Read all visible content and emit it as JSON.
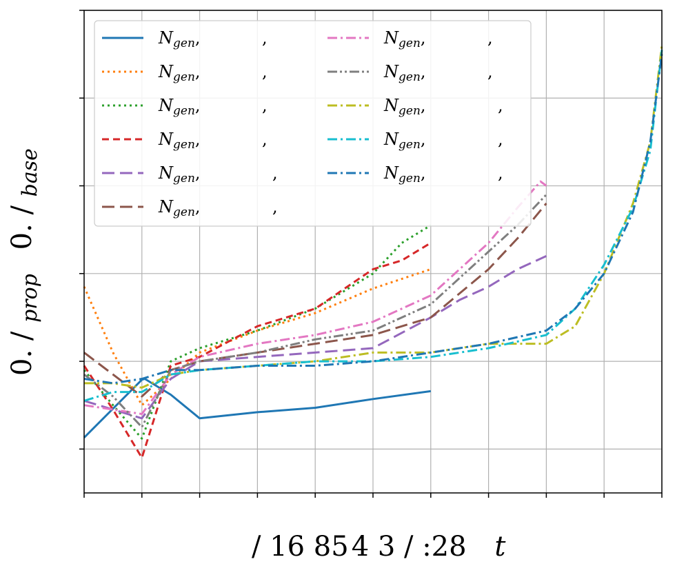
{
  "chart_data": {
    "type": "line",
    "xlabel": "/ 16  85 4  3 / :28",
    "xlabel_var": "t",
    "ylabel": "0. /",
    "ylabel_sub": "prop",
    "ylabel2": "0. /",
    "ylabel2_sub": "base",
    "xlim": [
      0,
      10
    ],
    "ylim": [
      0,
      5.5
    ],
    "xticks": [
      0,
      1,
      2,
      3,
      4,
      5,
      6,
      7,
      8,
      9,
      10
    ],
    "yticks": [
      0.5,
      1.5,
      2.5,
      3.5,
      4.5,
      5.5
    ],
    "grid": true,
    "legend_position": "top-left",
    "legend_columns": 2,
    "legend_label_main": "N",
    "legend_label_sub": "gen",
    "legend_label_suffix": ",",
    "series": [
      {
        "color": "#1f77b4",
        "dash": "solid",
        "x": [
          0,
          1,
          1.05,
          1.5,
          2,
          3,
          4,
          5,
          6
        ],
        "y": [
          0.63,
          1.29,
          1.3,
          1.12,
          0.85,
          0.92,
          0.97,
          1.07,
          1.16
        ]
      },
      {
        "color": "#ff7f0e",
        "dash": "dotted",
        "x": [
          0,
          0.5,
          1,
          1.5,
          2,
          3,
          4,
          5,
          6
        ],
        "y": [
          2.35,
          1.6,
          1.0,
          1.3,
          1.6,
          1.85,
          2.05,
          2.33,
          2.55
        ]
      },
      {
        "color": "#2ca02c",
        "dash": "dotted",
        "x": [
          0,
          0.5,
          1,
          1.5,
          2,
          3,
          4,
          5,
          5.5,
          6
        ],
        "y": [
          1.4,
          1.0,
          0.62,
          1.5,
          1.65,
          1.85,
          2.1,
          2.5,
          2.85,
          3.05
        ]
      },
      {
        "color": "#d62728",
        "dash": "dashed",
        "x": [
          0,
          0.5,
          1,
          1.5,
          2,
          3,
          4,
          5,
          5.5,
          6
        ],
        "y": [
          1.45,
          0.95,
          0.4,
          1.45,
          1.55,
          1.9,
          2.1,
          2.55,
          2.65,
          2.85
        ]
      },
      {
        "color": "#9467bd",
        "dash": "longdash",
        "x": [
          0,
          0.5,
          1,
          1.5,
          2,
          3,
          4,
          5,
          6,
          6.5,
          7,
          7.5,
          8
        ],
        "y": [
          1.05,
          0.95,
          0.85,
          1.3,
          1.5,
          1.55,
          1.6,
          1.65,
          2.0,
          2.2,
          2.35,
          2.55,
          2.7
        ]
      },
      {
        "color": "#8c564b",
        "dash": "longdash",
        "x": [
          0,
          0.5,
          1,
          1.5,
          2,
          3,
          4,
          5,
          6,
          7,
          7.5,
          8
        ],
        "y": [
          1.6,
          1.35,
          1.1,
          1.4,
          1.5,
          1.6,
          1.7,
          1.8,
          2.0,
          2.55,
          2.9,
          3.3
        ]
      },
      {
        "color": "#e377c2",
        "dash": "dashdot",
        "x": [
          0,
          0.5,
          1,
          1.5,
          2,
          3,
          4,
          5,
          6,
          7,
          7.5,
          7.9,
          8
        ],
        "y": [
          1.0,
          0.95,
          0.9,
          1.35,
          1.55,
          1.7,
          1.8,
          1.95,
          2.25,
          2.85,
          3.25,
          3.55,
          3.5
        ]
      },
      {
        "color": "#7f7f7f",
        "dash": "dashdotdot",
        "x": [
          0,
          0.5,
          1,
          1.5,
          2,
          3,
          4,
          5,
          6,
          7,
          7.5,
          8
        ],
        "y": [
          1.35,
          1.1,
          0.75,
          1.4,
          1.5,
          1.6,
          1.75,
          1.85,
          2.15,
          2.75,
          3.05,
          3.4
        ]
      },
      {
        "color": "#bcbd22",
        "dash": "dashdot",
        "x": [
          0,
          0.5,
          1,
          1.5,
          2,
          3,
          4,
          5,
          6,
          7,
          8,
          8.5,
          9,
          9.5,
          9.8,
          10
        ],
        "y": [
          1.25,
          1.25,
          1.2,
          1.35,
          1.4,
          1.45,
          1.5,
          1.6,
          1.6,
          1.7,
          1.7,
          1.9,
          2.5,
          3.3,
          4.0,
          5.1
        ]
      },
      {
        "color": "#17becf",
        "dash": "dashdot",
        "x": [
          0,
          0.5,
          1,
          1.5,
          2,
          3,
          4,
          5,
          6,
          7,
          8,
          8.5,
          9,
          9.5,
          9.8,
          10
        ],
        "y": [
          1.05,
          1.15,
          1.15,
          1.35,
          1.4,
          1.45,
          1.5,
          1.5,
          1.55,
          1.65,
          1.8,
          2.1,
          2.6,
          3.25,
          3.9,
          5.05
        ]
      },
      {
        "color": "#1f77b4",
        "dash": "dashdot",
        "x": [
          0,
          0.5,
          1,
          1.5,
          2,
          3,
          4,
          5,
          6,
          7,
          8,
          8.5,
          9,
          9.5,
          9.8,
          10
        ],
        "y": [
          1.3,
          1.25,
          1.3,
          1.4,
          1.4,
          1.45,
          1.45,
          1.5,
          1.6,
          1.7,
          1.85,
          2.1,
          2.5,
          3.2,
          4.0,
          5.0
        ]
      }
    ]
  }
}
